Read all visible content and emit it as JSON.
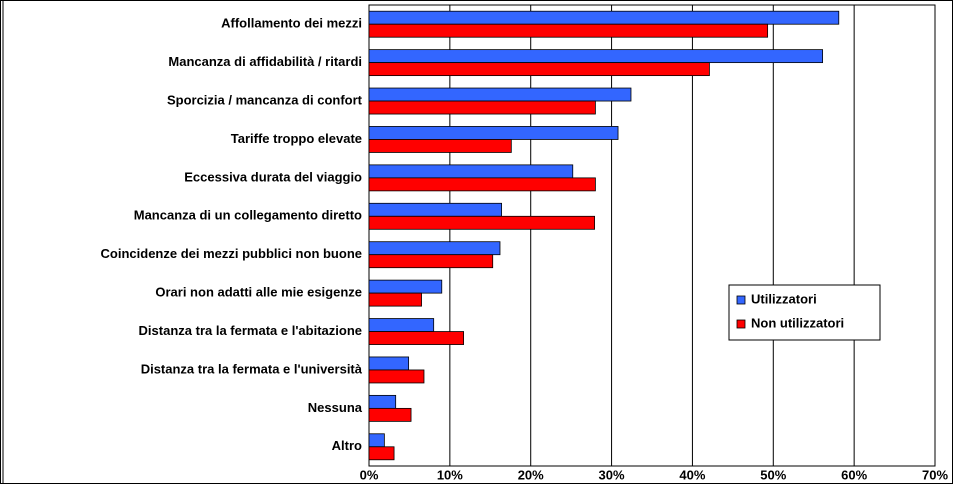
{
  "chart_data": {
    "type": "hbar",
    "categories": [
      "Affollamento dei mezzi",
      "Mancanza di affidabilità / ritardi",
      "Sporcizia / mancanza di confort",
      "Tariffe troppo elevate",
      "Eccessiva durata del viaggio",
      "Mancanza di un collegamento diretto",
      "Coincidenze dei mezzi pubblici non buone",
      "Orari non adatti alle mie esigenze",
      "Distanza tra la fermata e l'abitazione",
      "Distanza tra la fermata e l'università",
      "Nessuna",
      "Altro"
    ],
    "series": [
      {
        "name": "Utilizzatori",
        "color": "#3366ff",
        "values": [
          58.1,
          56.1,
          32.4,
          30.8,
          25.2,
          16.4,
          16.2,
          9.0,
          8.0,
          4.9,
          3.3,
          1.9
        ]
      },
      {
        "name": "Non utilizzatori",
        "color": "#ff0000",
        "values": [
          49.3,
          42.1,
          28.0,
          17.6,
          28.0,
          27.9,
          15.3,
          6.5,
          11.7,
          6.8,
          5.2,
          3.1
        ]
      }
    ],
    "xlim": [
      0,
      70
    ],
    "xticks": [
      {
        "value": 0,
        "label": "0%"
      },
      {
        "value": 10,
        "label": "10%"
      },
      {
        "value": 20,
        "label": "20%"
      },
      {
        "value": 30,
        "label": "30%"
      },
      {
        "value": 40,
        "label": "40%"
      },
      {
        "value": 50,
        "label": "50%"
      },
      {
        "value": 60,
        "label": "60%"
      },
      {
        "value": 70,
        "label": "70%"
      }
    ],
    "grid": true,
    "legend": "right"
  }
}
